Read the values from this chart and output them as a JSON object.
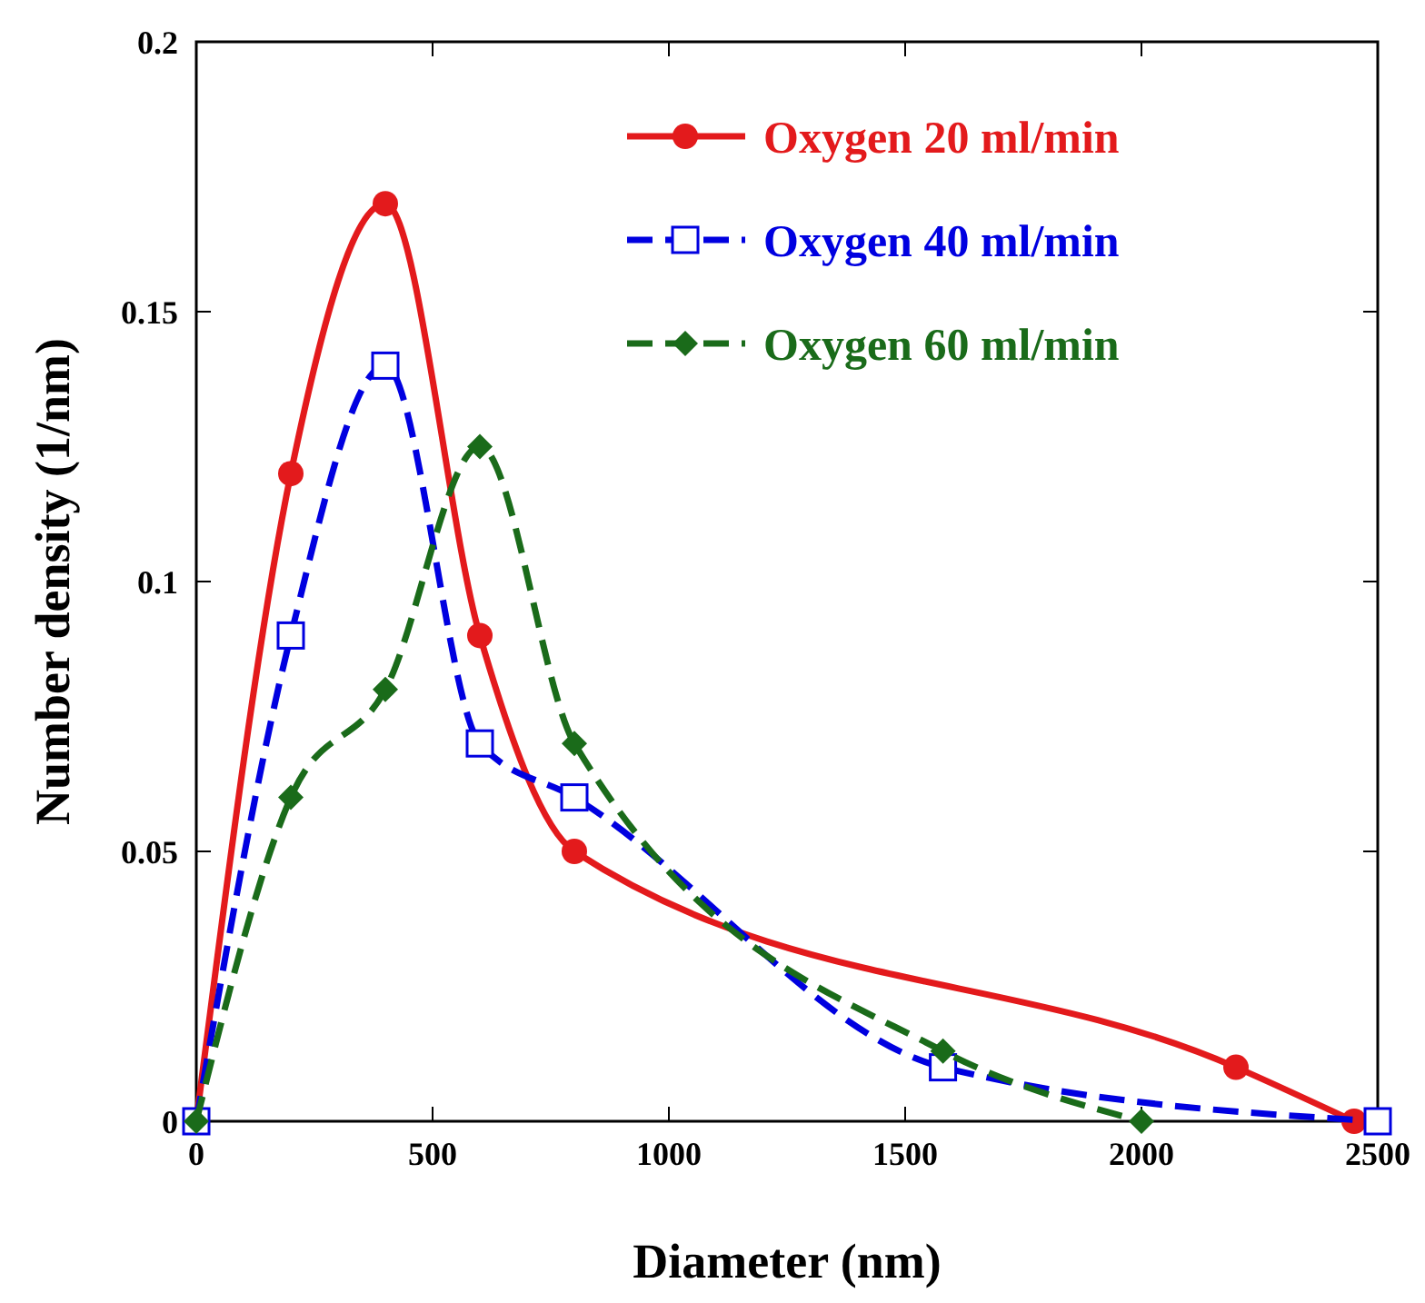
{
  "chart_data": {
    "type": "line",
    "xlabel": "Diameter (nm)",
    "ylabel": "Number density (1/nm)",
    "xlim": [
      0,
      2500
    ],
    "ylim": [
      0,
      0.2
    ],
    "xticks": [
      0,
      500,
      1000,
      1500,
      2000,
      2500
    ],
    "yticks": [
      0,
      0.05,
      0.1,
      0.15,
      0.2
    ],
    "grid": false,
    "legend": "top right",
    "series": [
      {
        "name": "Oxygen 20 ml/min",
        "color": "#e31a1c",
        "marker": "circle",
        "line_style": "solid",
        "x": [
          0,
          200,
          400,
          600,
          800,
          2200,
          2450
        ],
        "values": [
          0,
          0.12,
          0.17,
          0.09,
          0.05,
          0.01,
          0
        ]
      },
      {
        "name": "Oxygen 40 ml/min",
        "color": "#0000e0",
        "marker": "square",
        "line_style": "dashed",
        "x": [
          0,
          200,
          400,
          600,
          800,
          1580,
          2500
        ],
        "values": [
          0,
          0.09,
          0.14,
          0.07,
          0.06,
          0.01,
          0
        ]
      },
      {
        "name": "Oxygen 60 ml/min",
        "color": "#1a6b1a",
        "marker": "diamond",
        "line_style": "dashed",
        "x": [
          0,
          200,
          400,
          600,
          800,
          1580,
          2000
        ],
        "values": [
          0,
          0.06,
          0.08,
          0.125,
          0.07,
          0.013,
          0
        ]
      }
    ]
  }
}
